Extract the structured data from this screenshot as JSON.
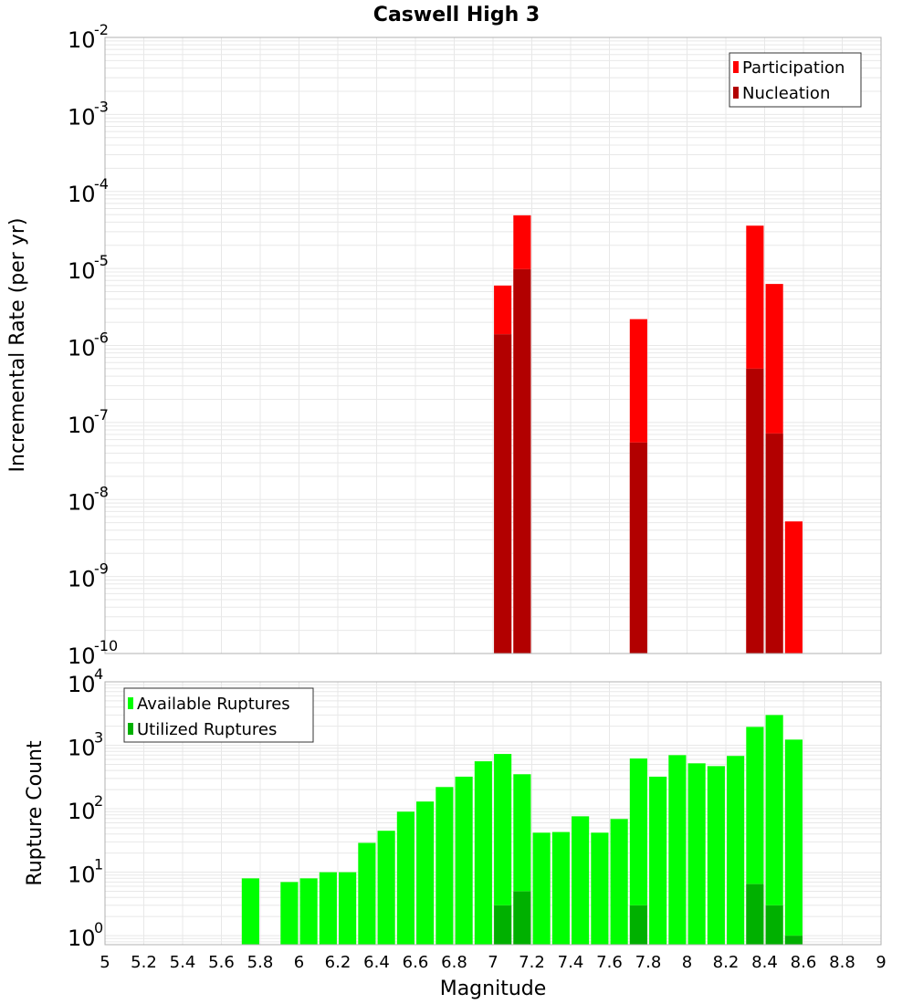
{
  "title": "Caswell High 3",
  "chart_data": [
    {
      "type": "bar",
      "title": "Caswell High 3",
      "xlabel": "Magnitude",
      "ylabel": "Incremental Rate (per yr)",
      "yscale": "log",
      "ylim": [
        1e-10,
        0.01
      ],
      "xlim": [
        5,
        9
      ],
      "grid": true,
      "legend_position": "top-right",
      "bar_width": 0.1,
      "x": [
        7.05,
        7.15,
        7.75,
        8.35,
        8.45,
        8.55
      ],
      "series": [
        {
          "name": "Participation",
          "color": "#ff0000",
          "values": [
            6e-06,
            4.9e-05,
            2.2e-06,
            3.6e-05,
            6.3e-06,
            5.2e-09
          ]
        },
        {
          "name": "Nucleation",
          "color": "#b20000",
          "values": [
            1.4e-06,
            9.8e-06,
            5.5e-08,
            5e-07,
            7.2e-08,
            null
          ]
        }
      ],
      "yticks": [
        "10^-2",
        "10^-3",
        "10^-4",
        "10^-5",
        "10^-6",
        "10^-7",
        "10^-8",
        "10^-9",
        "10^-10"
      ]
    },
    {
      "type": "bar",
      "title": "",
      "xlabel": "Magnitude",
      "ylabel": "Rupture Count",
      "yscale": "log",
      "ylim": [
        0.72,
        10000
      ],
      "xlim": [
        5,
        9
      ],
      "grid": true,
      "legend_position": "top-left",
      "bar_width": 0.1,
      "x": [
        5.75,
        5.95,
        6.05,
        6.15,
        6.25,
        6.35,
        6.45,
        6.55,
        6.65,
        6.75,
        6.85,
        6.95,
        7.05,
        7.15,
        7.25,
        7.35,
        7.45,
        7.55,
        7.65,
        7.75,
        7.85,
        7.95,
        8.05,
        8.15,
        8.25,
        8.35,
        8.45,
        8.55
      ],
      "series": [
        {
          "name": "Available Ruptures",
          "color": "#00ff00",
          "values": [
            8,
            7,
            8,
            10,
            10,
            29,
            45,
            90,
            130,
            220,
            320,
            560,
            730,
            350,
            42,
            43,
            76,
            42,
            69,
            620,
            320,
            700,
            520,
            470,
            680,
            1950,
            3000,
            1230
          ]
        },
        {
          "name": "Utilized Ruptures",
          "color": "#00b000",
          "values": [
            null,
            null,
            null,
            null,
            null,
            null,
            null,
            null,
            null,
            null,
            null,
            null,
            3,
            5,
            null,
            null,
            null,
            null,
            null,
            3,
            null,
            null,
            null,
            null,
            null,
            6.5,
            3,
            1
          ]
        }
      ],
      "yticks": [
        "10^4",
        "10^3",
        "10^2",
        "10^1",
        "10^0"
      ]
    }
  ],
  "xticks": [
    "5",
    "5.2",
    "5.4",
    "5.6",
    "5.8",
    "6",
    "6.2",
    "6.4",
    "6.6",
    "6.8",
    "7",
    "7.2",
    "7.4",
    "7.6",
    "7.8",
    "8",
    "8.2",
    "8.4",
    "8.6",
    "8.8",
    "9"
  ],
  "colors": {
    "grid": "#e8e8e8",
    "frame": "#b0b0b0",
    "legend_border": "#333333"
  }
}
